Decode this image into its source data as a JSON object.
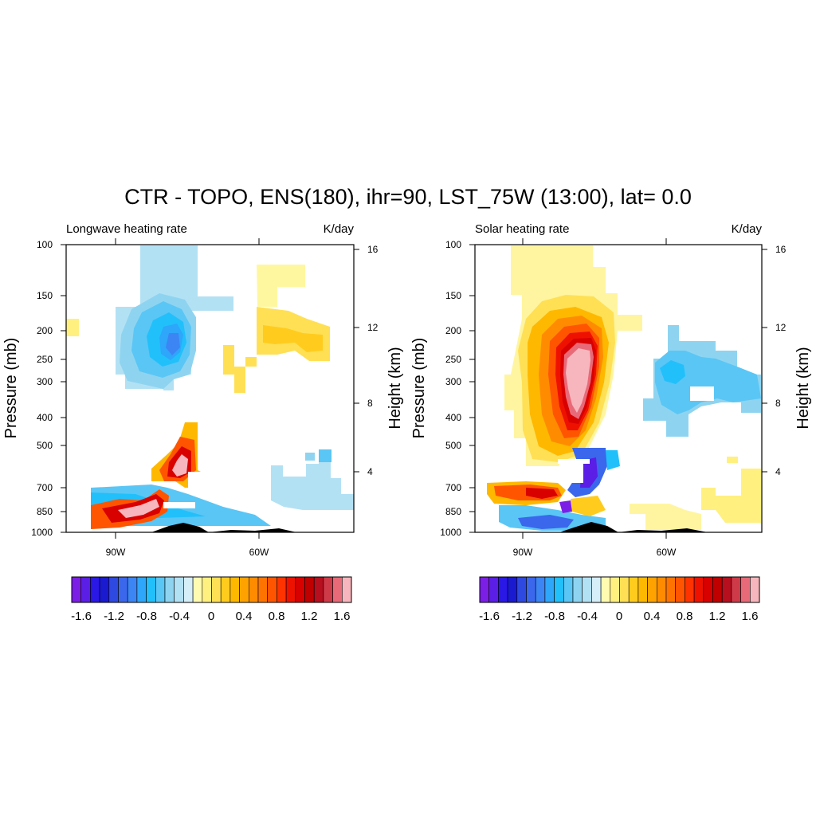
{
  "title": "CTR - TOPO, ENS(180), ihr=90, LST_75W (13:00), lat=  0.0",
  "panels": [
    {
      "name": "longwave",
      "left_label": "Longwave heating rate",
      "right_label": "K/day",
      "ylabel_left": "Pressure (mb)",
      "ylabel_right": "Height (km)",
      "pressure_ticks": [
        "100",
        "150",
        "200",
        "250",
        "300",
        "400",
        "500",
        "700",
        "850",
        "1000"
      ],
      "height_ticks": [
        "16",
        "12",
        "8",
        "4"
      ],
      "x_ticks": [
        "90W",
        "60W"
      ]
    },
    {
      "name": "solar",
      "left_label": "Solar heating rate",
      "right_label": "K/day",
      "ylabel_left": "Pressure (mb)",
      "ylabel_right": "Height (km)",
      "pressure_ticks": [
        "100",
        "150",
        "200",
        "250",
        "300",
        "400",
        "500",
        "700",
        "850",
        "1000"
      ],
      "height_ticks": [
        "16",
        "12",
        "8",
        "4"
      ],
      "x_ticks": [
        "90W",
        "60W"
      ]
    }
  ],
  "colorbar": {
    "colors": [
      "#7c1fe6",
      "#5a1ee6",
      "#2a18e6",
      "#1a1ad1",
      "#2e49e0",
      "#3a67ec",
      "#3c85f4",
      "#2ea6fa",
      "#21c0fb",
      "#5ac6f5",
      "#8ed4f0",
      "#b3e1f4",
      "#d5eef8",
      "#fffbb0",
      "#fff080",
      "#ffe055",
      "#ffcc1e",
      "#ffb800",
      "#ffa200",
      "#ff8c00",
      "#ff7400",
      "#ff5500",
      "#ff3300",
      "#ee1100",
      "#d90000",
      "#c00000",
      "#b80f1e",
      "#cf3a48",
      "#e86a78",
      "#f7b6bd"
    ],
    "labels": [
      "-1.6",
      "-1.2",
      "-0.8",
      "-0.4",
      "0",
      "0.4",
      "0.8",
      "1.2",
      "1.6"
    ]
  },
  "chart_data": [
    {
      "type": "heatmap",
      "title": "Longwave heating rate",
      "units": "K/day",
      "xlabel": "",
      "ylabel": "Pressure (mb)",
      "ylabel_right": "Height (km)",
      "xlim": [
        -100,
        -40
      ],
      "ylim": [
        1000,
        100
      ],
      "color_range": [
        -1.6,
        1.6
      ],
      "x_ticks": [
        "90W",
        "60W"
      ],
      "features": [
        {
          "lon": -78,
          "p": 230,
          "value": -1.0
        },
        {
          "lon": -74,
          "p": 620,
          "value": 1.2
        },
        {
          "lon": -87,
          "p": 820,
          "value": 1.6
        },
        {
          "lon": -60,
          "p": 180,
          "value": 0.4
        }
      ]
    },
    {
      "type": "heatmap",
      "title": "Solar heating rate",
      "units": "K/day",
      "xlabel": "",
      "ylabel": "Pressure (mb)",
      "ylabel_right": "Height (km)",
      "xlim": [
        -100,
        -40
      ],
      "ylim": [
        1000,
        100
      ],
      "color_range": [
        -1.6,
        1.6
      ],
      "x_ticks": [
        "90W",
        "60W"
      ],
      "features": [
        {
          "lon": -80,
          "p": 300,
          "value": 1.6
        },
        {
          "lon": -52,
          "p": 280,
          "value": -0.4
        },
        {
          "lon": -73,
          "p": 680,
          "value": -1.6
        },
        {
          "lon": -84,
          "p": 920,
          "value": -1.0
        }
      ]
    }
  ]
}
